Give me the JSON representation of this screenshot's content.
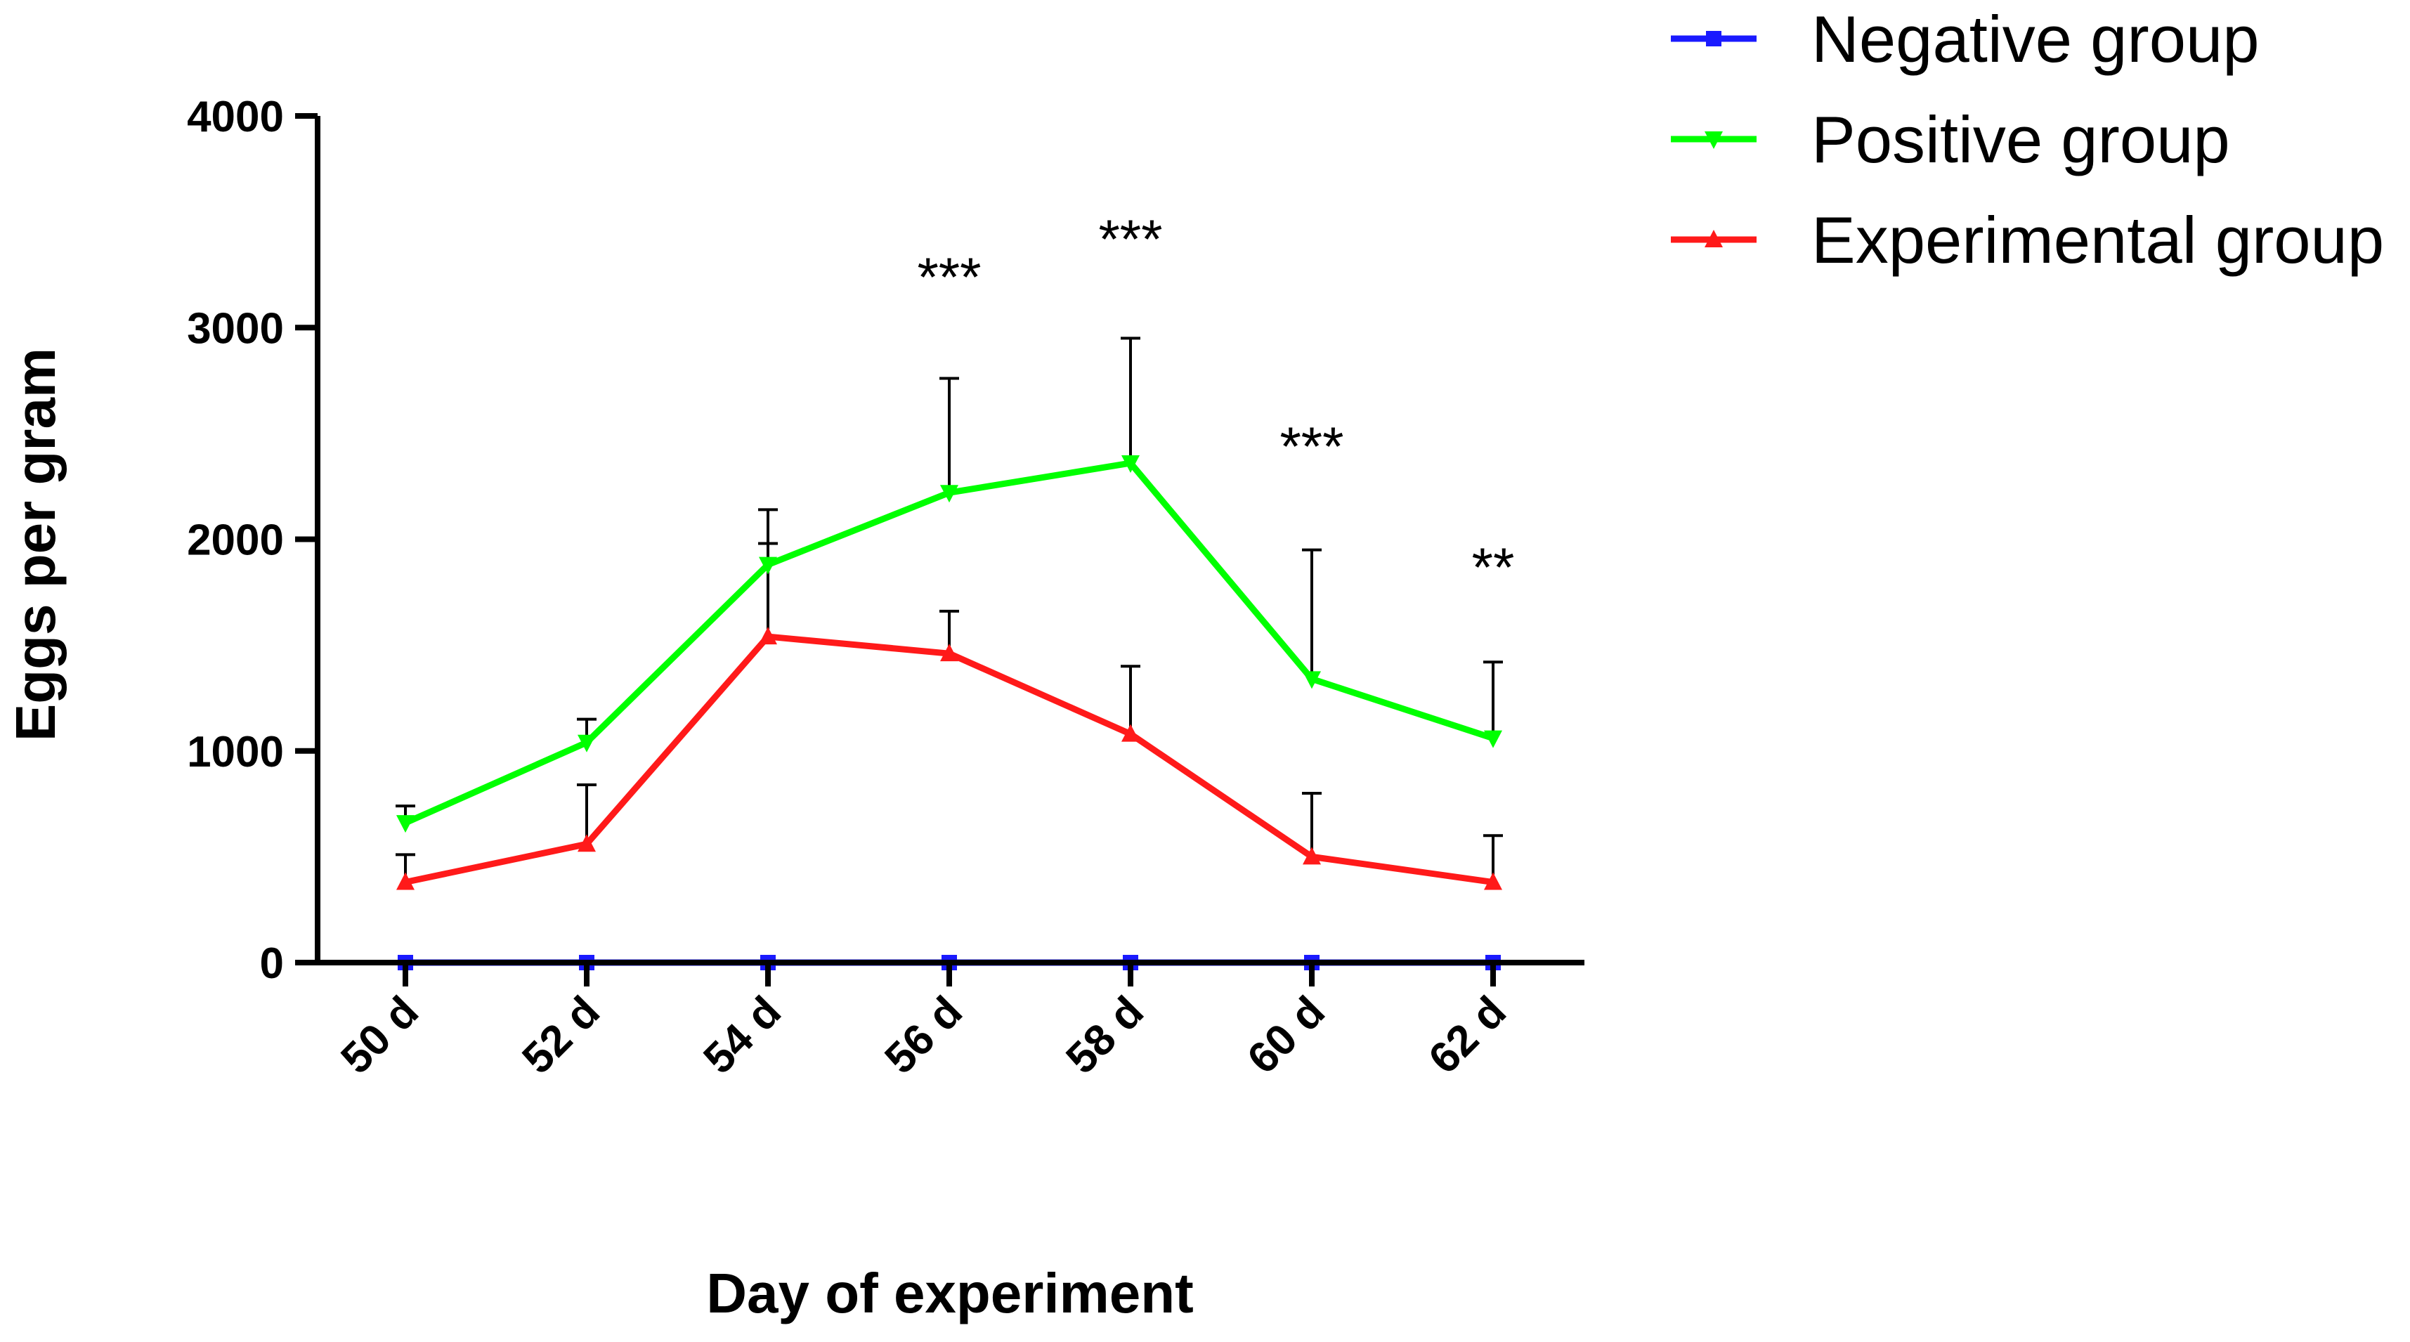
{
  "chart_data": {
    "type": "line",
    "title": "",
    "xlabel": "Day of experiment",
    "ylabel": "Eggs per gram",
    "ylim": [
      0,
      4000
    ],
    "yticks": [
      0,
      1000,
      2000,
      3000,
      4000
    ],
    "categories": [
      "50 d",
      "52 d",
      "54 d",
      "56 d",
      "58 d",
      "60 d",
      "62 d"
    ],
    "legend_position": "top-right",
    "series": [
      {
        "name": "Negative group",
        "color": "#1a1aff",
        "marker": "square",
        "values": [
          0,
          0,
          0,
          0,
          0,
          0,
          0
        ],
        "errors": [
          0,
          0,
          0,
          0,
          0,
          0,
          0
        ]
      },
      {
        "name": "Positive group",
        "color": "#00ff00",
        "marker": "triangle-down",
        "values": [
          660,
          1040,
          1880,
          2220,
          2360,
          1340,
          1060
        ],
        "errors": [
          80,
          110,
          260,
          540,
          590,
          610,
          360
        ]
      },
      {
        "name": "Experimental group",
        "color": "#ff1a1a",
        "marker": "triangle-up",
        "values": [
          380,
          560,
          1540,
          1460,
          1080,
          500,
          380
        ],
        "errors": [
          130,
          280,
          440,
          200,
          320,
          300,
          220
        ]
      }
    ],
    "annotations": [
      {
        "category": "56 d",
        "text": "***",
        "y": 3150
      },
      {
        "category": "58 d",
        "text": "***",
        "y": 3330
      },
      {
        "category": "60 d",
        "text": "***",
        "y": 2350
      },
      {
        "category": "62 d",
        "text": "**",
        "y": 1780
      }
    ]
  }
}
